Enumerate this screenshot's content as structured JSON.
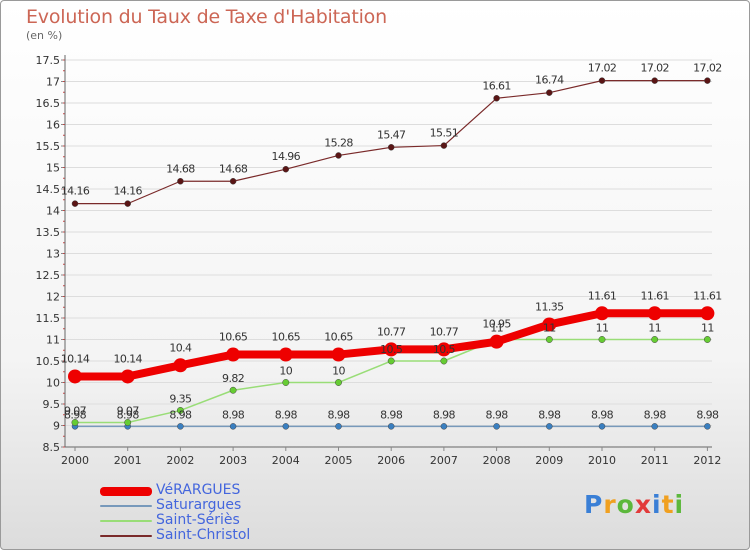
{
  "title": "Evolution du Taux de Taxe d'Habitation",
  "subtitle": "(en %)",
  "logo": {
    "text": "Proxiti",
    "letter_colors": [
      "#3a7fd6",
      "#f0a020",
      "#5cb83c",
      "#e23b3b",
      "#3a7fd6",
      "#f0a020",
      "#5cb83c"
    ]
  },
  "chart_data": {
    "type": "line",
    "x": [
      "2000",
      "2001",
      "2002",
      "2003",
      "2004",
      "2005",
      "2006",
      "2007",
      "2008",
      "2009",
      "2010",
      "2011",
      "2012"
    ],
    "ylim": [
      8.5,
      17.5
    ],
    "ytick_step": 0.5,
    "yticks": [
      "8.5",
      "9",
      "9.5",
      "10",
      "10.5",
      "11",
      "11.5",
      "12",
      "12.5",
      "13",
      "13.5",
      "14",
      "14.5",
      "15",
      "15.5",
      "16",
      "16.5",
      "17",
      "17.5"
    ],
    "grid": true,
    "legend_position": "bottom-left",
    "series": [
      {
        "name": "VéRARGUES",
        "color": "#ee0000",
        "marker_color": "#ee0000",
        "values": [
          10.14,
          10.14,
          10.4,
          10.65,
          10.65,
          10.65,
          10.77,
          10.77,
          10.95,
          11.35,
          11.61,
          11.61,
          11.61
        ],
        "labels": [
          "10.14",
          "10.14",
          "10.4",
          "10.65",
          "10.65",
          "10.65",
          "10.77",
          "10.77",
          "10.95",
          "11.35",
          "11.61",
          "11.61",
          "11.61"
        ]
      },
      {
        "name": "Saturargues",
        "color": "#7799bb",
        "marker_color": "#3a7fc0",
        "values": [
          8.98,
          8.98,
          8.98,
          8.98,
          8.98,
          8.98,
          8.98,
          8.98,
          8.98,
          8.98,
          8.98,
          8.98,
          8.98
        ],
        "labels": [
          "8.98",
          "8.98",
          "8.98",
          "8.98",
          "8.98",
          "8.98",
          "8.98",
          "8.98",
          "8.98",
          "8.98",
          "8.98",
          "8.98",
          "8.98"
        ]
      },
      {
        "name": "Saint-Sériès",
        "color": "#99dd77",
        "marker_color": "#66cc33",
        "values": [
          9.07,
          9.07,
          9.35,
          9.82,
          10,
          10,
          10.5,
          10.5,
          11,
          11,
          11,
          11,
          11
        ],
        "labels": [
          "9.07",
          "9.07",
          "9.35",
          "9.82",
          "10",
          "10",
          "10.5",
          "10.5",
          "11",
          "11",
          "11",
          "11",
          "11"
        ]
      },
      {
        "name": "Saint-Christol",
        "color": "#7a2a2a",
        "marker_color": "#5a1515",
        "values": [
          14.16,
          14.16,
          14.68,
          14.68,
          14.96,
          15.28,
          15.47,
          15.51,
          16.61,
          16.74,
          17.02,
          17.02,
          17.02
        ],
        "labels": [
          "14.16",
          "14.16",
          "14.68",
          "14.68",
          "14.96",
          "15.28",
          "15.47",
          "15.51",
          "16.61",
          "16.74",
          "17.02",
          "17.02",
          "17.02"
        ]
      }
    ]
  }
}
